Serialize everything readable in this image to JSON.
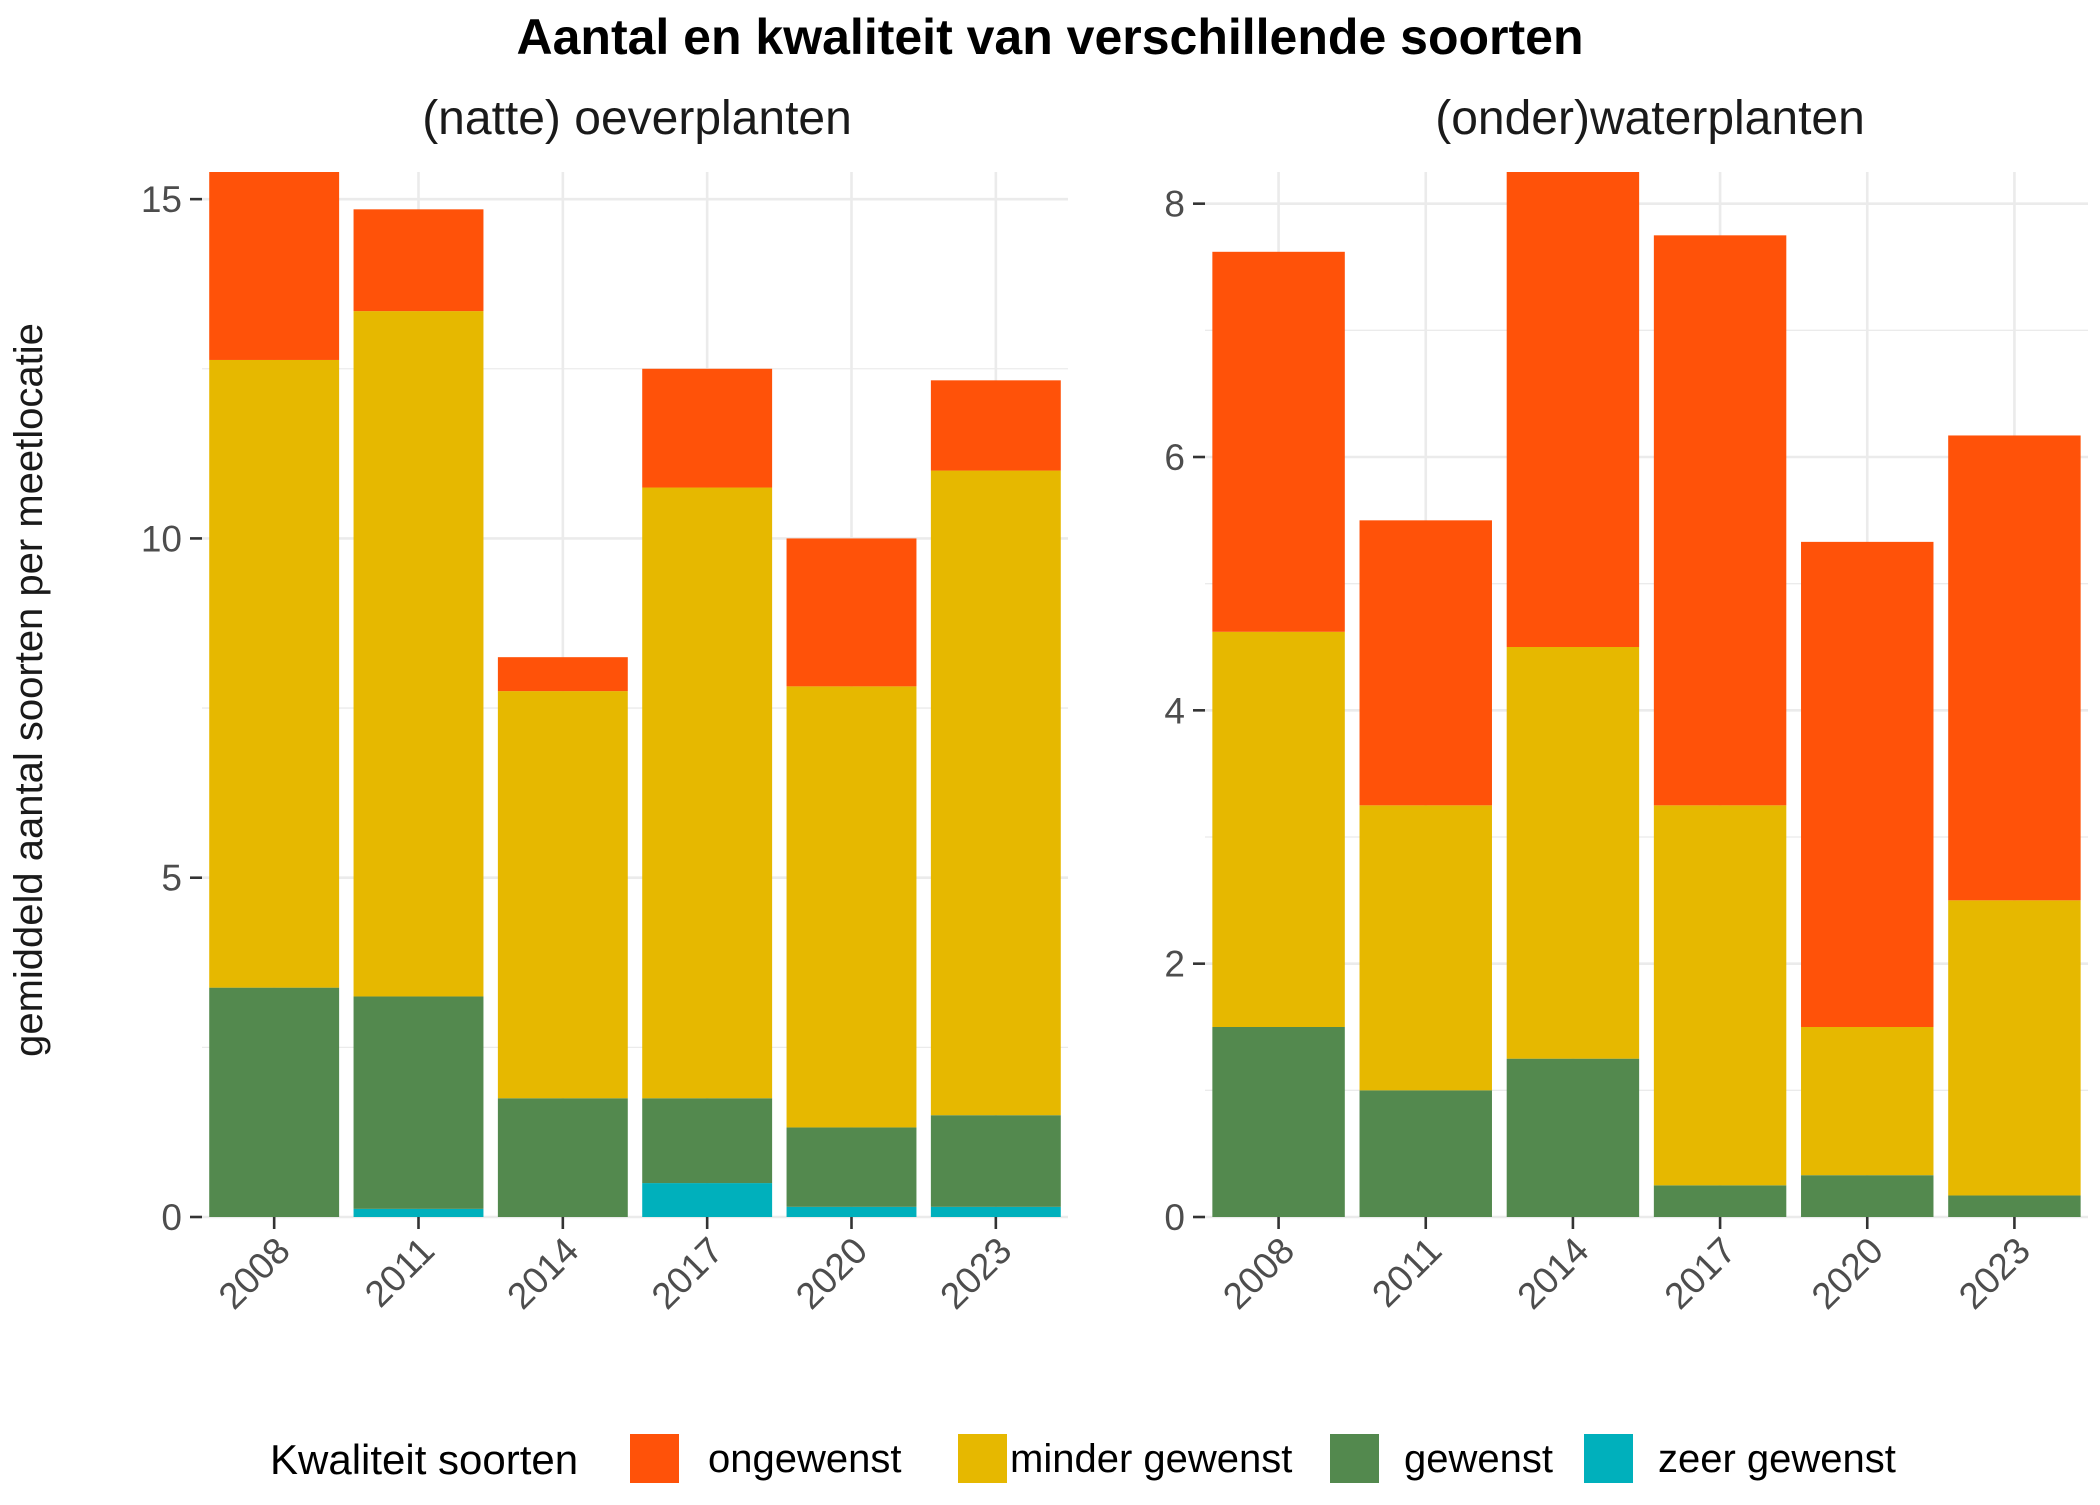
{
  "title": "Aantal en kwaliteit van verschillende soorten",
  "ylabel": "gemiddeld aantal soorten per meetlocatie",
  "legend": {
    "title": "Kwaliteit soorten",
    "items": [
      {
        "key": "ongewenst",
        "label": "ongewenst",
        "color": "#FF5209"
      },
      {
        "key": "minder_gewenst",
        "label": "minder gewenst",
        "color": "#E6B800"
      },
      {
        "key": "gewenst",
        "label": "gewenst",
        "color": "#53894E"
      },
      {
        "key": "zeer_gewenst",
        "label": "zeer gewenst",
        "color": "#00B0BC"
      }
    ]
  },
  "chart_data": [
    {
      "type": "bar",
      "stacked": true,
      "title": "(natte) oeverplanten",
      "categories": [
        "2008",
        "2011",
        "2014",
        "2017",
        "2020",
        "2023"
      ],
      "yticks": [
        0,
        5,
        10,
        15
      ],
      "ylim": [
        0,
        15.4
      ],
      "series": [
        {
          "name": "zeer gewenst",
          "key": "zeer_gewenst",
          "values": [
            0,
            0.12,
            0,
            0.5,
            0.15,
            0.15
          ]
        },
        {
          "name": "gewenst",
          "key": "gewenst",
          "values": [
            3.38,
            3.13,
            1.75,
            1.25,
            1.17,
            1.35
          ]
        },
        {
          "name": "minder gewenst",
          "key": "minder_gewenst",
          "values": [
            9.25,
            10.1,
            6.0,
            9.0,
            6.5,
            9.5
          ]
        },
        {
          "name": "ongewenst",
          "key": "ongewenst",
          "values": [
            2.77,
            1.5,
            0.5,
            1.75,
            2.18,
            1.33
          ]
        }
      ]
    },
    {
      "type": "bar",
      "stacked": true,
      "title": "(onder)waterplanten",
      "categories": [
        "2008",
        "2011",
        "2014",
        "2017",
        "2020",
        "2023"
      ],
      "yticks": [
        0,
        2,
        4,
        6,
        8
      ],
      "ylim": [
        0,
        8.25
      ],
      "series": [
        {
          "name": "zeer gewenst",
          "key": "zeer_gewenst",
          "values": [
            0,
            0,
            0,
            0,
            0,
            0
          ]
        },
        {
          "name": "gewenst",
          "key": "gewenst",
          "values": [
            1.5,
            1.0,
            1.25,
            0.25,
            0.33,
            0.17
          ]
        },
        {
          "name": "minder gewenst",
          "key": "minder_gewenst",
          "values": [
            3.12,
            2.25,
            3.25,
            3.0,
            1.17,
            2.33
          ]
        },
        {
          "name": "ongewenst",
          "key": "ongewenst",
          "values": [
            3.0,
            2.25,
            3.75,
            4.5,
            3.83,
            3.67
          ]
        }
      ]
    }
  ]
}
